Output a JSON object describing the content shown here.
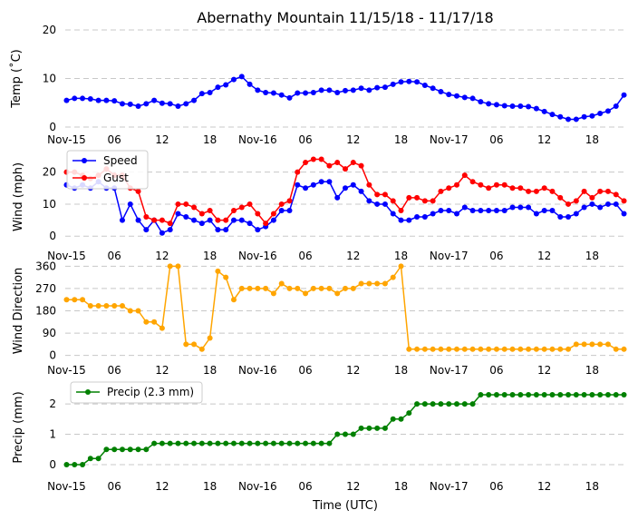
{
  "chart_data": {
    "title": "Abernathy Mountain 11/15/18 - 11/17/18",
    "xlabel": "Time (UTC)",
    "type": "line",
    "x_hours": [
      0,
      3,
      6,
      9,
      12,
      15,
      18,
      21,
      24,
      27,
      30,
      33,
      36,
      39,
      42,
      45,
      48,
      51,
      54,
      57,
      60,
      63,
      66,
      69,
      72,
      75,
      78,
      81,
      84,
      87,
      90,
      93,
      96,
      99,
      102,
      105,
      108,
      111,
      114,
      117,
      120,
      123,
      126,
      129,
      132,
      135,
      138,
      141,
      144,
      147,
      150,
      153,
      156,
      159,
      162,
      165,
      168,
      171,
      174,
      177,
      180,
      183,
      186,
      189,
      192,
      195,
      198,
      201,
      204,
      207,
      210
    ],
    "x_range_hours": [
      -0.5,
      210.5
    ],
    "x_ticks": [
      {
        "h": 0,
        "label": "Nov-15"
      },
      {
        "h": 18,
        "label": "06"
      },
      {
        "h": 36,
        "label": "12"
      },
      {
        "h": 54,
        "label": "18"
      },
      {
        "h": 72,
        "label": "Nov-16"
      },
      {
        "h": 90,
        "label": "06"
      },
      {
        "h": 108,
        "label": "12"
      },
      {
        "h": 126,
        "label": "18"
      },
      {
        "h": 144,
        "label": "Nov-17"
      },
      {
        "h": 162,
        "label": "06"
      },
      {
        "h": 180,
        "label": "12"
      },
      {
        "h": 198,
        "label": "18"
      }
    ],
    "panels": [
      {
        "ylabel": "Temp (˚C)",
        "ylim": [
          0,
          20
        ],
        "yticks": [
          0,
          10,
          20
        ],
        "legend": null,
        "series": [
          {
            "name": "Temp",
            "color": "#0000ff",
            "values": [
              5.5,
              5.9,
              5.9,
              5.8,
              5.5,
              5.5,
              5.4,
              4.8,
              4.7,
              4.3,
              4.8,
              5.5,
              4.9,
              4.8,
              4.3,
              4.8,
              5.5,
              6.9,
              7.1,
              8.2,
              8.7,
              9.8,
              10.4,
              8.8,
              7.6,
              7.1,
              7.0,
              6.6,
              6.0,
              7.0,
              7.0,
              7.1,
              7.6,
              7.6,
              7.1,
              7.5,
              7.6,
              8.0,
              7.6,
              8.1,
              8.2,
              8.8,
              9.3,
              9.4,
              9.3,
              8.6,
              8.0,
              7.3,
              6.7,
              6.4,
              6.1,
              5.9,
              5.2,
              4.8,
              4.6,
              4.4,
              4.3,
              4.3,
              4.2,
              3.8,
              3.2,
              2.6,
              2.1,
              1.6,
              1.6,
              2.1,
              2.3,
              2.8,
              3.3,
              4.3,
              6.6
            ]
          }
        ]
      },
      {
        "ylabel": "Wind (mph)",
        "ylim": [
          -0.5,
          25
        ],
        "yticks": [
          0,
          10,
          20
        ],
        "legend": {
          "placement": "top-left",
          "entries": [
            "Speed",
            "Gust"
          ]
        },
        "series": [
          {
            "name": "Speed",
            "color": "#0000ff",
            "values": [
              16,
              15,
              16,
              15,
              17,
              15,
              15,
              5,
              10,
              5,
              2,
              5,
              1,
              2,
              7,
              6,
              5,
              4,
              5,
              2,
              2,
              5,
              5,
              4,
              2,
              3,
              5,
              8,
              8,
              16,
              15,
              16,
              17,
              17,
              12,
              15,
              16,
              14,
              11,
              10,
              10,
              7,
              5,
              5,
              6,
              6,
              7,
              8,
              8,
              7,
              9,
              8,
              8,
              8,
              8,
              8,
              9,
              9,
              9,
              7,
              8,
              8,
              6,
              6,
              7,
              9,
              10,
              9,
              10,
              10,
              7
            ]
          },
          {
            "name": "Gust",
            "color": "#ff0000",
            "values": [
              20,
              20,
              19,
              18,
              19,
              21,
              19,
              19,
              15,
              14,
              6,
              5,
              5,
              4,
              10,
              10,
              9,
              7,
              8,
              5,
              5,
              8,
              9,
              10,
              7,
              4,
              7,
              10,
              11,
              20,
              23,
              24,
              24,
              22,
              23,
              21,
              23,
              22,
              16,
              13,
              13,
              11,
              8,
              12,
              12,
              11,
              11,
              14,
              15,
              16,
              19,
              17,
              16,
              15,
              16,
              16,
              15,
              15,
              14,
              14,
              15,
              14,
              12,
              10,
              11,
              14,
              12,
              14,
              14,
              13,
              11
            ]
          }
        ]
      },
      {
        "ylabel": "Wind Direction",
        "ylim": [
          -5,
          365
        ],
        "yticks": [
          0,
          90,
          180,
          270,
          360
        ],
        "legend": null,
        "series": [
          {
            "name": "Direction",
            "color": "#ffa500",
            "values": [
              225,
              225,
              225,
              200,
              200,
              200,
              200,
              200,
              180,
              180,
              135,
              135,
              110,
              360,
              360,
              45,
              45,
              25,
              70,
              340,
              315,
              225,
              270,
              270,
              270,
              270,
              250,
              290,
              270,
              270,
              250,
              270,
              270,
              270,
              250,
              270,
              270,
              290,
              290,
              290,
              290,
              315,
              360,
              25,
              25,
              25,
              25,
              25,
              25,
              25,
              25,
              25,
              25,
              25,
              25,
              25,
              25,
              25,
              25,
              25,
              25,
              25,
              25,
              25,
              45,
              45,
              45,
              45,
              45,
              25,
              25
            ]
          }
        ]
      },
      {
        "ylabel": "Precip (mm)",
        "ylim": [
          -0.15,
          2.6
        ],
        "yticks": [
          0,
          1,
          2
        ],
        "legend": {
          "placement": "top-left",
          "entries": [
            "Precip (2.3 mm)"
          ]
        },
        "series": [
          {
            "name": "Precip (2.3 mm)",
            "color": "#008000",
            "values": [
              0,
              0,
              0,
              0.2,
              0.2,
              0.5,
              0.5,
              0.5,
              0.5,
              0.5,
              0.5,
              0.7,
              0.7,
              0.7,
              0.7,
              0.7,
              0.7,
              0.7,
              0.7,
              0.7,
              0.7,
              0.7,
              0.7,
              0.7,
              0.7,
              0.7,
              0.7,
              0.7,
              0.7,
              0.7,
              0.7,
              0.7,
              0.7,
              0.7,
              1.0,
              1.0,
              1.0,
              1.2,
              1.2,
              1.2,
              1.2,
              1.5,
              1.5,
              1.7,
              2.0,
              2.0,
              2.0,
              2.0,
              2.0,
              2.0,
              2.0,
              2.0,
              2.3,
              2.3,
              2.3,
              2.3,
              2.3,
              2.3,
              2.3,
              2.3,
              2.3,
              2.3,
              2.3,
              2.3,
              2.3,
              2.3,
              2.3,
              2.3,
              2.3,
              2.3,
              2.3
            ]
          }
        ]
      }
    ]
  }
}
